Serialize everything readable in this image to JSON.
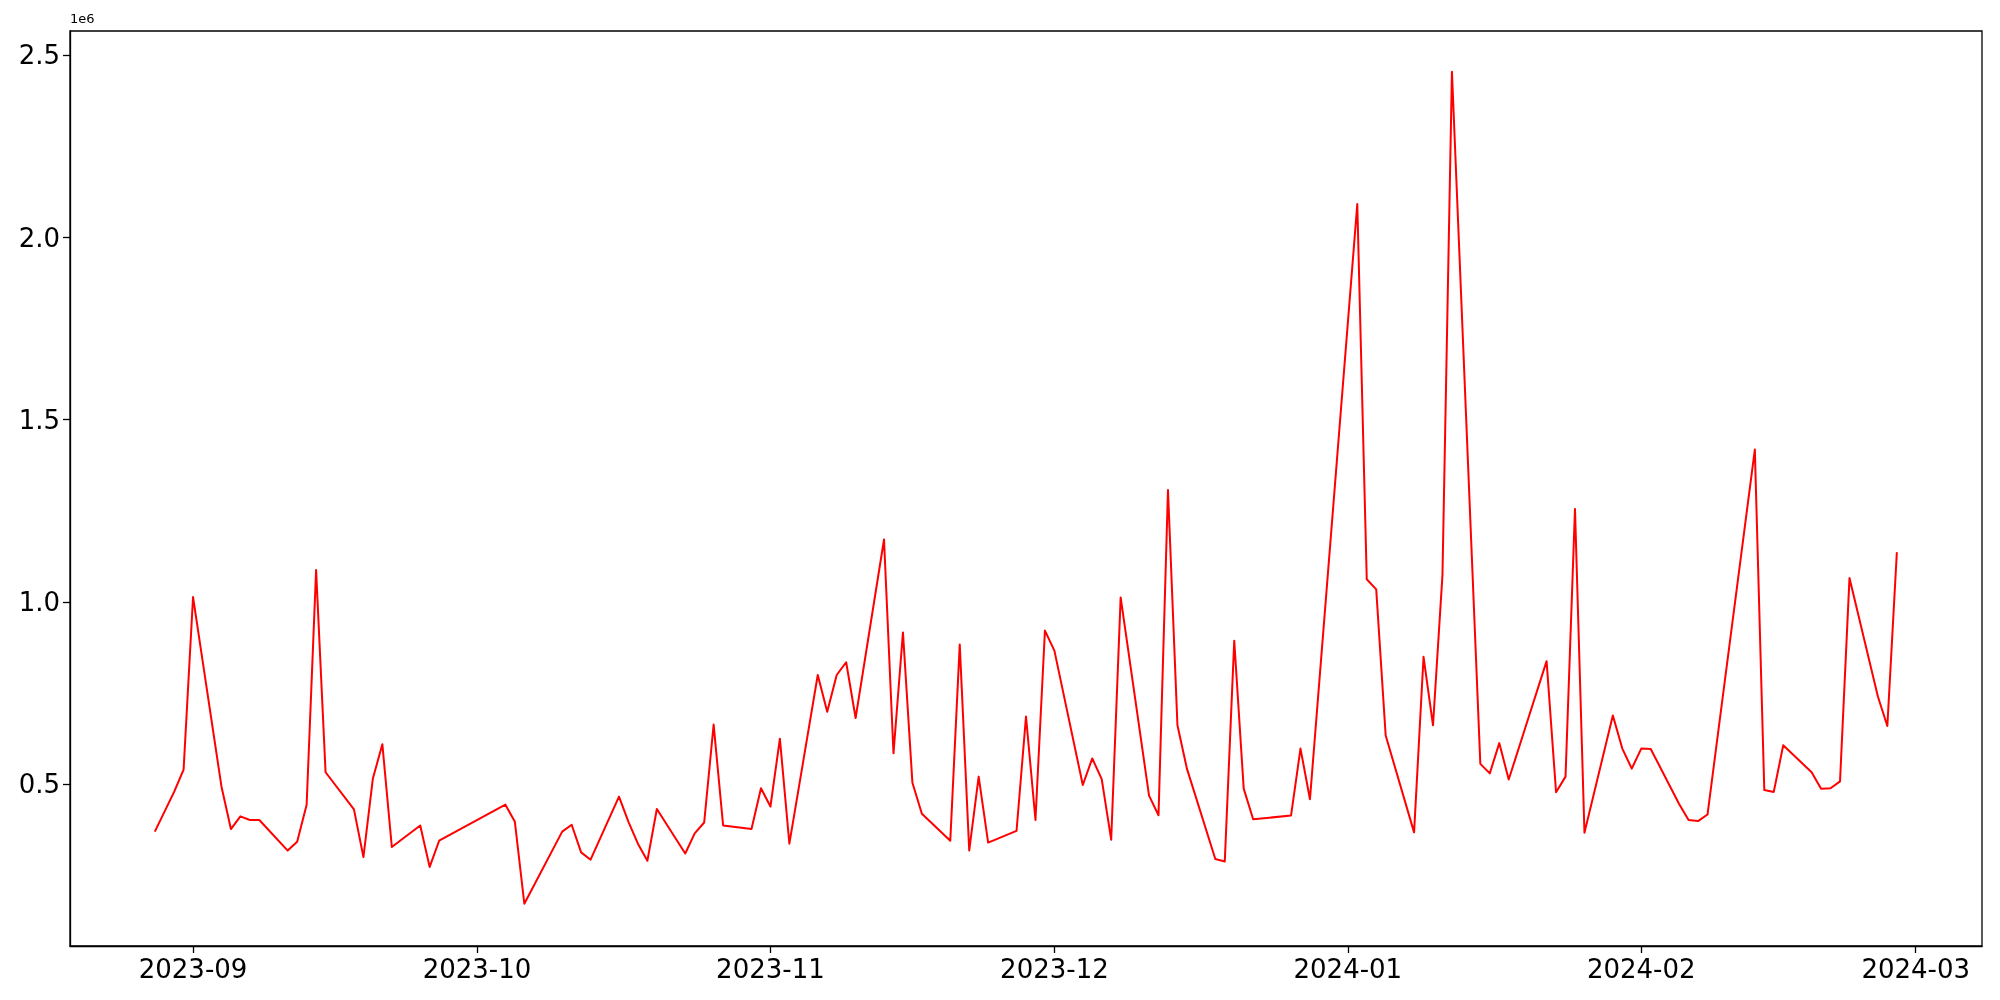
{
  "chart_data": {
    "type": "line",
    "x": [
      "2023-08-28",
      "2023-08-30",
      "2023-08-31",
      "2023-09-01",
      "2023-09-04",
      "2023-09-05",
      "2023-09-06",
      "2023-09-07",
      "2023-09-08",
      "2023-09-11",
      "2023-09-12",
      "2023-09-13",
      "2023-09-14",
      "2023-09-15",
      "2023-09-18",
      "2023-09-19",
      "2023-09-20",
      "2023-09-21",
      "2023-09-22",
      "2023-09-25",
      "2023-09-26",
      "2023-09-27",
      "2023-10-04",
      "2023-10-05",
      "2023-10-06",
      "2023-10-10",
      "2023-10-11",
      "2023-10-12",
      "2023-10-13",
      "2023-10-16",
      "2023-10-17",
      "2023-10-18",
      "2023-10-19",
      "2023-10-20",
      "2023-10-23",
      "2023-10-24",
      "2023-10-25",
      "2023-10-26",
      "2023-10-27",
      "2023-10-30",
      "2023-10-31",
      "2023-11-01",
      "2023-11-02",
      "2023-11-03",
      "2023-11-06",
      "2023-11-07",
      "2023-11-08",
      "2023-11-09",
      "2023-11-10",
      "2023-11-13",
      "2023-11-14",
      "2023-11-15",
      "2023-11-16",
      "2023-11-17",
      "2023-11-20",
      "2023-11-21",
      "2023-11-22",
      "2023-11-23",
      "2023-11-24",
      "2023-11-27",
      "2023-11-28",
      "2023-11-29",
      "2023-11-30",
      "2023-12-01",
      "2023-12-04",
      "2023-12-05",
      "2023-12-06",
      "2023-12-07",
      "2023-12-08",
      "2023-12-11",
      "2023-12-12",
      "2023-12-13",
      "2023-12-14",
      "2023-12-15",
      "2023-12-18",
      "2023-12-19",
      "2023-12-20",
      "2023-12-21",
      "2023-12-22",
      "2023-12-26",
      "2023-12-27",
      "2023-12-28",
      "2024-01-02",
      "2024-01-03",
      "2024-01-04",
      "2024-01-05",
      "2024-01-08",
      "2024-01-09",
      "2024-01-10",
      "2024-01-11",
      "2024-01-12",
      "2024-01-15",
      "2024-01-16",
      "2024-01-17",
      "2024-01-18",
      "2024-01-22",
      "2024-01-23",
      "2024-01-24",
      "2024-01-25",
      "2024-01-26",
      "2024-01-29",
      "2024-01-30",
      "2024-01-31",
      "2024-02-01",
      "2024-02-02",
      "2024-02-05",
      "2024-02-06",
      "2024-02-07",
      "2024-02-08",
      "2024-02-13",
      "2024-02-14",
      "2024-02-15",
      "2024-02-16",
      "2024-02-19",
      "2024-02-20",
      "2024-02-21",
      "2024-02-22",
      "2024-02-23",
      "2024-02-26",
      "2024-02-27",
      "2024-02-28"
    ],
    "series": [
      {
        "color": "#ff0000",
        "values": [
          0.371,
          0.478,
          0.539,
          1.013,
          0.493,
          0.376,
          0.411,
          0.401,
          0.401,
          0.317,
          0.341,
          0.443,
          1.087,
          0.532,
          0.43,
          0.299,
          0.515,
          0.609,
          0.327,
          0.386,
          0.272,
          0.344,
          0.443,
          0.396,
          0.171,
          0.369,
          0.388,
          0.312,
          0.292,
          0.465,
          0.396,
          0.336,
          0.289,
          0.431,
          0.309,
          0.364,
          0.394,
          0.663,
          0.386,
          0.376,
          0.488,
          0.438,
          0.624,
          0.336,
          0.799,
          0.698,
          0.799,
          0.834,
          0.681,
          1.171,
          0.584,
          0.916,
          0.503,
          0.418,
          0.344,
          0.883,
          0.317,
          0.52,
          0.339,
          0.371,
          0.685,
          0.401,
          0.921,
          0.866,
          0.497,
          0.57,
          0.513,
          0.347,
          1.012,
          0.468,
          0.414,
          1.307,
          0.661,
          0.542,
          0.294,
          0.287,
          0.893,
          0.487,
          0.403,
          0.413,
          0.597,
          0.458,
          2.092,
          1.062,
          1.034,
          0.633,
          0.367,
          0.849,
          0.661,
          1.074,
          2.455,
          0.555,
          0.529,
          0.612,
          0.512,
          0.837,
          0.477,
          0.52,
          1.255,
          0.366,
          0.688,
          0.597,
          0.542,
          0.597,
          0.596,
          0.445,
          0.401,
          0.398,
          0.416,
          1.418,
          0.483,
          0.478,
          0.606,
          0.532,
          0.487,
          0.488,
          0.507,
          1.065,
          0.74,
          0.659,
          1.134
        ]
      }
    ],
    "xlim": [
      "2023-08-19",
      "2024-03-08"
    ],
    "xticks": [
      {
        "value": "2023-09-01",
        "label": "2023-09"
      },
      {
        "value": "2023-10-01",
        "label": "2023-10"
      },
      {
        "value": "2023-11-01",
        "label": "2023-11"
      },
      {
        "value": "2023-12-01",
        "label": "2023-12"
      },
      {
        "value": "2024-01-01",
        "label": "2024-01"
      },
      {
        "value": "2024-02-01",
        "label": "2024-02"
      },
      {
        "value": "2024-03-01",
        "label": "2024-03"
      }
    ],
    "ylim": [
      0.055,
      2.567
    ],
    "yticks": [
      0.5,
      {
        "value": 1,
        "label": "1.0"
      },
      1.5,
      {
        "value": 2,
        "label": "2.0"
      },
      2.5
    ],
    "annotations": [
      "1e6"
    ],
    "grid": false,
    "marker": "none",
    "line_style": "solid"
  }
}
